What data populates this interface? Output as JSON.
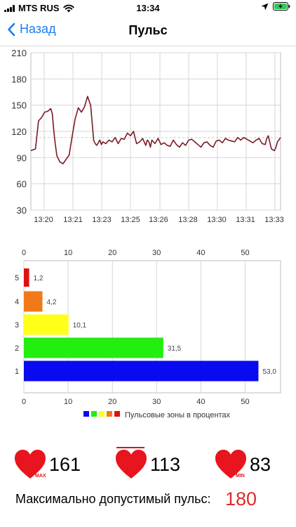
{
  "status_bar": {
    "carrier": "MTS RUS",
    "time": "13:34"
  },
  "nav": {
    "back_label": "Назад",
    "title": "Пульс"
  },
  "colors": {
    "accent": "#1a7cf5",
    "line": "#7a1a24",
    "heart": "#e8141e",
    "max_value": "#e22a2a",
    "zone_5": "#e01010",
    "zone_4": "#f07a1a",
    "zone_3": "#ffff1a",
    "zone_2": "#22ee10",
    "zone_1": "#0a0af0"
  },
  "chart_data": [
    {
      "type": "line",
      "x": [
        "13:19:45",
        "13:20:00",
        "13:20:10",
        "13:20:20",
        "13:20:30",
        "13:20:40",
        "13:20:50",
        "13:20:55",
        "13:21:00",
        "13:21:05",
        "13:21:10",
        "13:21:20",
        "13:21:30",
        "13:21:40",
        "13:21:50",
        "13:22:00",
        "13:22:10",
        "13:22:20",
        "13:22:30",
        "13:22:40",
        "13:22:50",
        "13:23:00",
        "13:23:05",
        "13:23:10",
        "13:23:15",
        "13:23:20",
        "13:23:25",
        "13:23:30",
        "13:23:35",
        "13:23:40",
        "13:23:50",
        "13:24:00",
        "13:24:10",
        "13:24:20",
        "13:24:30",
        "13:24:40",
        "13:24:50",
        "13:25:00",
        "13:25:10",
        "13:25:20",
        "13:25:30",
        "13:25:40",
        "13:25:50",
        "13:26:00",
        "13:26:05",
        "13:26:10",
        "13:26:15",
        "13:26:20",
        "13:26:30",
        "13:26:40",
        "13:26:50",
        "13:27:00",
        "13:27:10",
        "13:27:20",
        "13:27:30",
        "13:27:40",
        "13:27:50",
        "13:28:00",
        "13:28:10",
        "13:28:20",
        "13:28:30",
        "13:28:40",
        "13:28:50",
        "13:29:00",
        "13:29:10",
        "13:29:20",
        "13:29:30",
        "13:29:40",
        "13:29:50",
        "13:30:00",
        "13:30:10",
        "13:30:20",
        "13:30:30",
        "13:30:40",
        "13:30:50",
        "13:31:00",
        "13:31:10",
        "13:31:20",
        "13:31:30",
        "13:31:40",
        "13:31:50",
        "13:32:00",
        "13:32:10",
        "13:32:20",
        "13:32:30",
        "13:32:35",
        "13:32:40",
        "13:32:50",
        "13:33:00",
        "13:33:05",
        "13:33:10",
        "13:33:20"
      ],
      "values": [
        98,
        100,
        132,
        136,
        142,
        143,
        146,
        140,
        120,
        105,
        92,
        85,
        83,
        88,
        93,
        115,
        135,
        147,
        142,
        148,
        160,
        150,
        130,
        110,
        106,
        104,
        107,
        110,
        105,
        108,
        106,
        110,
        108,
        113,
        106,
        112,
        111,
        118,
        115,
        120,
        106,
        108,
        112,
        104,
        110,
        108,
        102,
        110,
        106,
        112,
        105,
        107,
        104,
        103,
        110,
        105,
        102,
        107,
        104,
        110,
        111,
        108,
        105,
        102,
        107,
        108,
        104,
        102,
        109,
        110,
        107,
        112,
        110,
        109,
        108,
        113,
        110,
        113,
        111,
        109,
        107,
        110,
        112,
        106,
        105,
        112,
        115,
        100,
        98,
        102,
        108,
        113
      ],
      "y_ticks": [
        30,
        60,
        90,
        120,
        150,
        180,
        210
      ],
      "ylim": [
        30,
        210
      ],
      "x_ticks": [
        "13:20",
        "13:21",
        "13:22",
        "13:23",
        "13:25",
        "13:26",
        "13:28",
        "13:30",
        "13:31",
        "13:33"
      ],
      "average_line": 113,
      "grid": true
    },
    {
      "type": "bar",
      "orientation": "horizontal",
      "categories": [
        "5",
        "4",
        "3",
        "2",
        "1"
      ],
      "values": [
        1.2,
        4.2,
        10.1,
        31.5,
        53.0
      ],
      "value_labels": [
        "1,2",
        "4,2",
        "10,1",
        "31,5",
        "53,0"
      ],
      "x_ticks": [
        0,
        10,
        20,
        30,
        40,
        50
      ],
      "xlim": [
        0,
        58
      ],
      "legend": "Пульсовые зоны в процентах",
      "legend_position": "bottom",
      "grid": true
    }
  ],
  "stats": {
    "max_value": "161",
    "max_label": "MAX",
    "avg_value": "113",
    "min_value": "83",
    "min_label": "MIN"
  },
  "max_allowed": {
    "label": "Максимально допустимый пульс:",
    "value": "180"
  }
}
